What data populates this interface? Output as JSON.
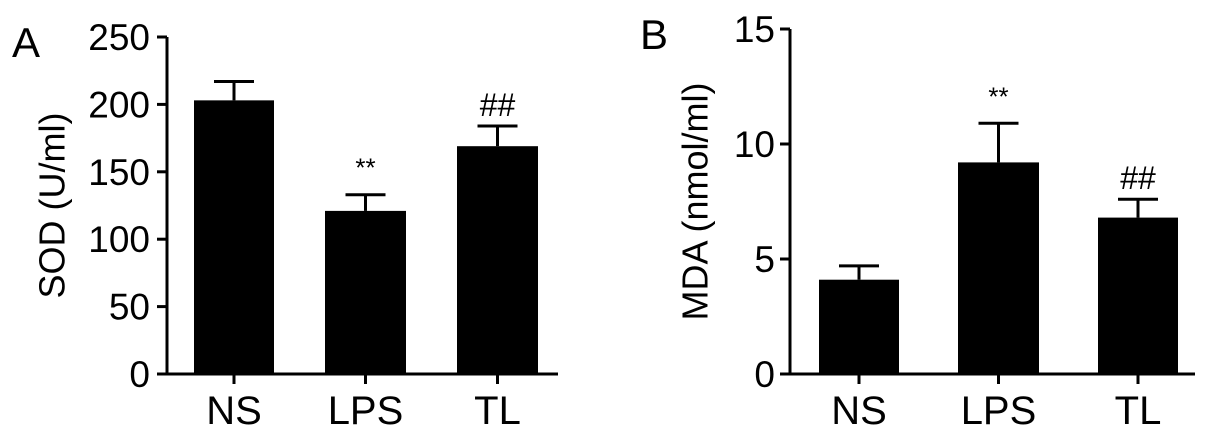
{
  "chart_data": [
    {
      "type": "bar",
      "panel_label": "A",
      "categories": [
        "NS",
        "LPS",
        "TL"
      ],
      "values": [
        203,
        121,
        169
      ],
      "error_upper": [
        217,
        133,
        184
      ],
      "annotations": [
        "",
        "**",
        "##"
      ],
      "ylabel": "SOD (U/ml)",
      "xlabel": "",
      "ylim": [
        0,
        250
      ],
      "yticks": [
        0,
        50,
        100,
        150,
        200,
        250
      ],
      "bar_color": "#000000",
      "grid": false
    },
    {
      "type": "bar",
      "panel_label": "B",
      "categories": [
        "NS",
        "LPS",
        "TL"
      ],
      "values": [
        4.1,
        9.2,
        6.8
      ],
      "error_upper": [
        4.7,
        10.9,
        7.6
      ],
      "annotations": [
        "",
        "**",
        "##"
      ],
      "ylabel": "MDA (nmol/ml)",
      "xlabel": "",
      "ylim": [
        0,
        15
      ],
      "yticks": [
        0,
        5,
        10,
        15
      ],
      "bar_color": "#000000",
      "grid": false
    }
  ]
}
